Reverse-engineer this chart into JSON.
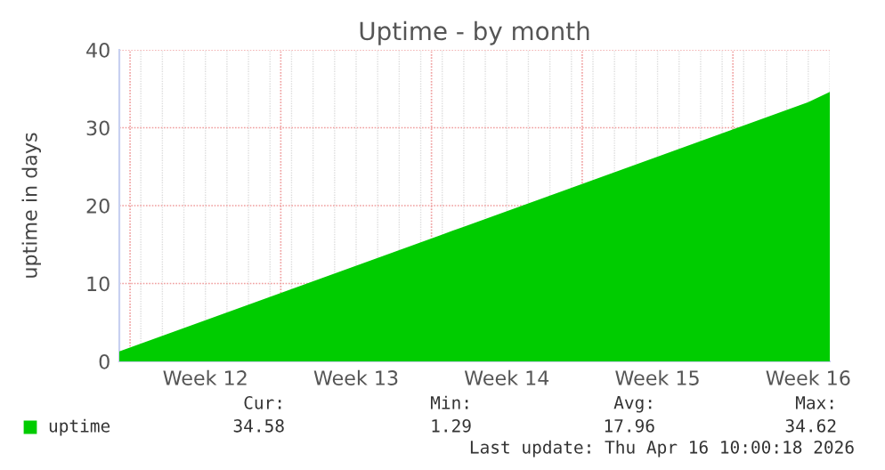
{
  "chart_data": {
    "type": "area",
    "title": "Uptime - by month",
    "ylabel": "uptime in days",
    "categories": [
      null,
      null,
      null,
      null,
      "Week 12",
      null,
      null,
      null,
      null,
      null,
      null,
      "Week 13",
      null,
      null,
      null,
      null,
      null,
      null,
      "Week 14",
      null,
      null,
      null,
      null,
      null,
      null,
      "Week 15",
      null,
      null,
      null,
      null,
      null,
      null,
      "Week 16",
      null
    ],
    "series": [
      {
        "name": "uptime",
        "color": "#00cc00",
        "values": [
          1.3,
          2.3,
          3.3,
          4.3,
          5.3,
          6.3,
          7.3,
          8.3,
          9.3,
          10.3,
          11.3,
          12.3,
          13.3,
          14.3,
          15.3,
          16.3,
          17.3,
          18.3,
          19.3,
          20.3,
          21.3,
          22.3,
          23.3,
          24.3,
          25.3,
          26.3,
          27.3,
          28.3,
          29.3,
          30.3,
          31.3,
          32.3,
          33.3,
          34.6
        ]
      }
    ],
    "ylim": [
      0,
      40
    ],
    "yticks": [
      0,
      10,
      20,
      30,
      40
    ],
    "grid": true,
    "legend": "bottom left",
    "annotations": [
      "Cur:",
      "34.58",
      "Min:",
      "1.29",
      "Avg:",
      "17.96",
      "Max:",
      "34.62",
      "Last update: Thu Apr 16 10:00:18 2026"
    ]
  }
}
